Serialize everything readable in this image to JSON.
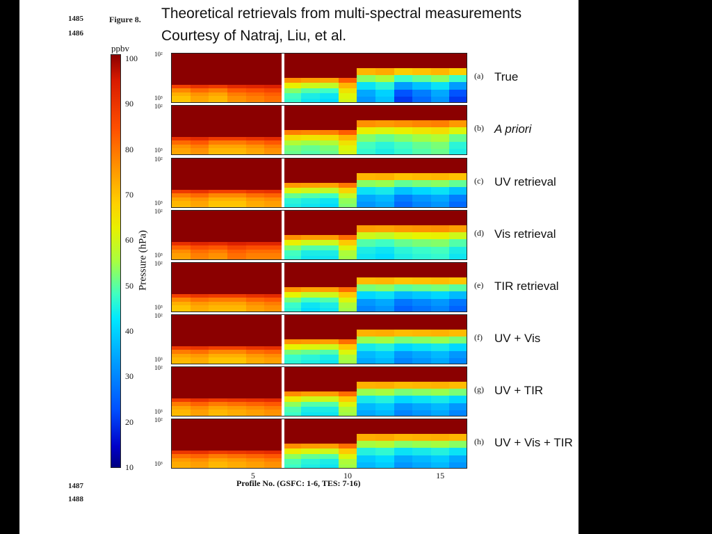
{
  "slide": {
    "title_line1": "Theoretical retrievals from multi-spectral measurements",
    "title_line2": "Courtesy of Natraj, Liu, et al.",
    "figure_label": "Figure 8.",
    "line_numbers": [
      "1485",
      "1486",
      "1487",
      "1488"
    ]
  },
  "colors": {
    "background": "#000000",
    "slide": "#ffffff"
  },
  "chart_data": {
    "type": "heatmap",
    "colorbar": {
      "unit": "ppbv",
      "range": [
        10,
        100
      ],
      "ticks": [
        "100",
        "90",
        "80",
        "70",
        "60",
        "50",
        "40",
        "30",
        "20",
        "10"
      ]
    },
    "ylabel": "Pressure (hPa)",
    "y_ticks": [
      "10²",
      "10³"
    ],
    "xlabel": "Profile No. (GSFC: 1-6, TES: 7-16)",
    "x_ticks": [
      "5",
      "10",
      "15"
    ],
    "x_tick_values": [
      5,
      10,
      15
    ],
    "x_range": [
      0.5,
      16.5
    ],
    "profiles": [
      1,
      2,
      3,
      4,
      5,
      6,
      7,
      8,
      9,
      10,
      11,
      12,
      13,
      14,
      15,
      16
    ],
    "bottom_levels_ppbv_approx": [
      [
        70,
        75,
        72,
        78,
        80,
        82,
        45,
        40,
        38,
        60,
        30,
        35,
        20,
        25,
        30,
        20
      ],
      [
        75,
        78,
        72,
        72,
        75,
        78,
        50,
        48,
        50,
        60,
        45,
        42,
        45,
        48,
        50,
        42
      ],
      [
        72,
        75,
        70,
        70,
        74,
        76,
        42,
        40,
        38,
        52,
        30,
        32,
        25,
        28,
        30,
        25
      ],
      [
        76,
        80,
        78,
        82,
        80,
        80,
        45,
        40,
        40,
        55,
        40,
        38,
        42,
        44,
        45,
        40
      ],
      [
        70,
        74,
        72,
        72,
        76,
        78,
        44,
        38,
        40,
        55,
        28,
        30,
        24,
        26,
        28,
        24
      ],
      [
        72,
        74,
        70,
        70,
        74,
        76,
        44,
        42,
        40,
        55,
        32,
        34,
        28,
        30,
        32,
        28
      ],
      [
        72,
        76,
        72,
        74,
        76,
        78,
        46,
        40,
        40,
        55,
        32,
        34,
        28,
        30,
        32,
        28
      ],
      [
        74,
        76,
        72,
        74,
        76,
        78,
        46,
        42,
        40,
        55,
        34,
        36,
        30,
        32,
        34,
        30
      ]
    ],
    "panels": [
      {
        "letter": "(a)",
        "name": "True",
        "italic": true
      },
      {
        "letter": "(b)",
        "name": "A priori",
        "italic": true
      },
      {
        "letter": "(c)",
        "name": "UV retrieval",
        "italic": false
      },
      {
        "letter": "(d)",
        "name": "Vis retrieval",
        "italic": false
      },
      {
        "letter": "(e)",
        "name": "TIR retrieval",
        "italic": false
      },
      {
        "letter": "(f)",
        "name": "UV + Vis",
        "italic": false
      },
      {
        "letter": "(g)",
        "name": "UV + TIR",
        "italic": false
      },
      {
        "letter": "(h)",
        "name": "UV + Vis + TIR",
        "italic": false
      }
    ]
  }
}
